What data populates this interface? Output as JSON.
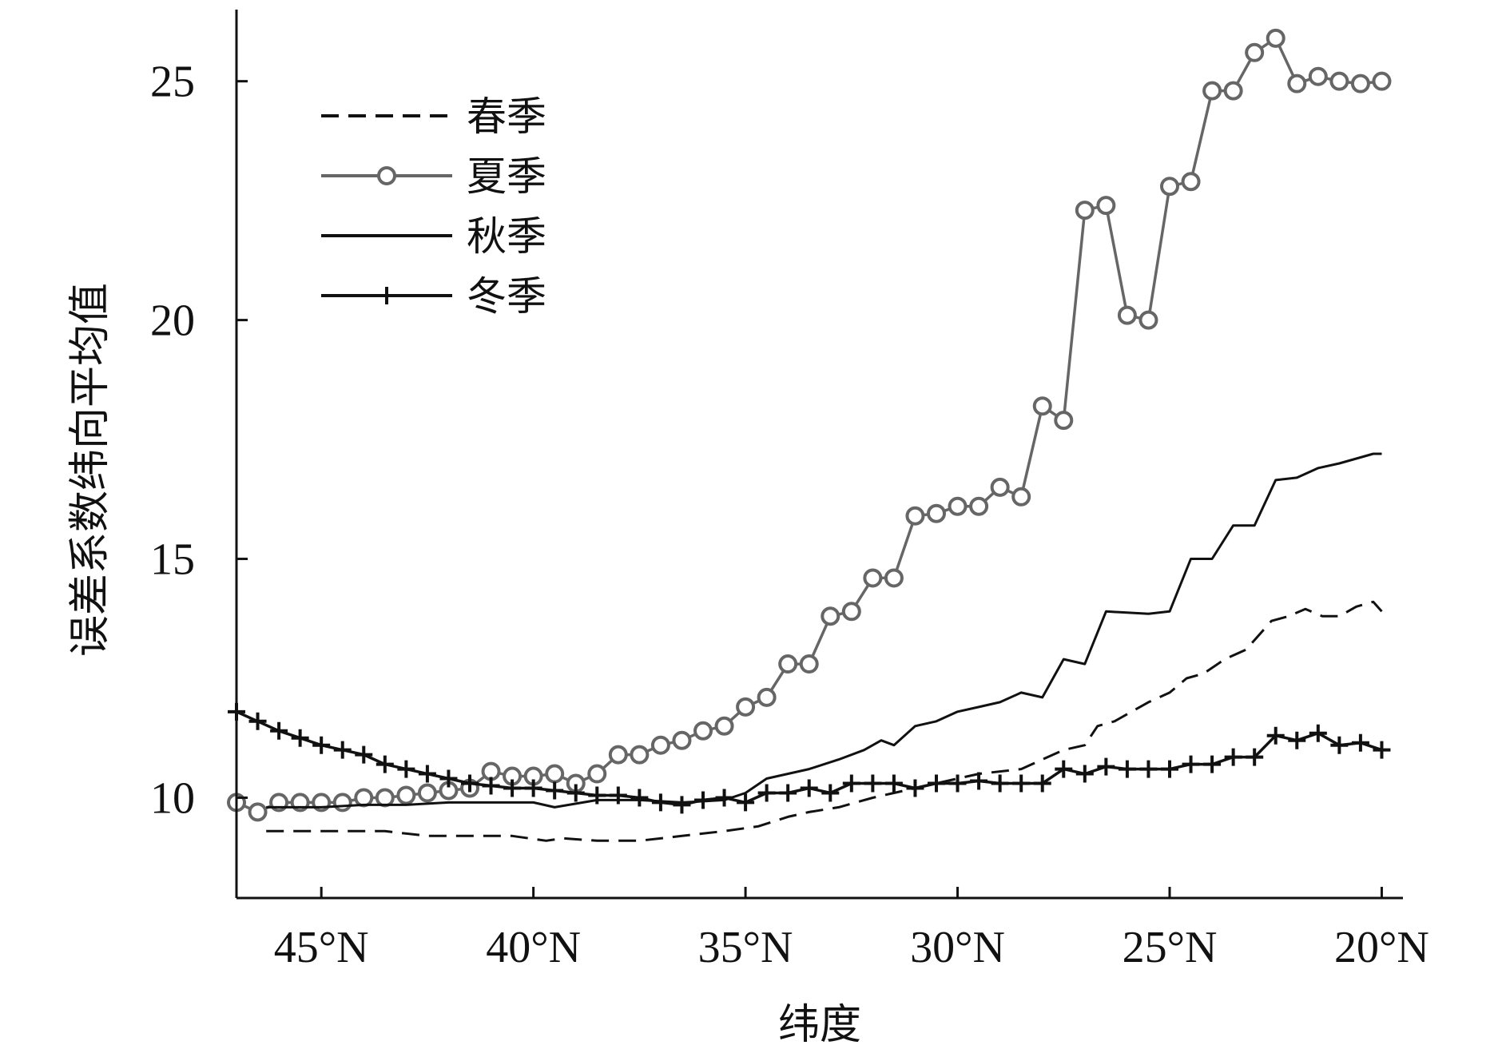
{
  "chart_data": {
    "type": "line",
    "title": "",
    "xlabel": "纬度",
    "ylabel": "误差系数纬向平均值",
    "x_reversed": true,
    "xlim": [
      47.0,
      19.5
    ],
    "ylim": [
      7.9,
      26.5
    ],
    "x_ticks": [
      {
        "value": 45,
        "label": "45°N"
      },
      {
        "value": 40,
        "label": "40°N"
      },
      {
        "value": 35,
        "label": "35°N"
      },
      {
        "value": 30,
        "label": "30°N"
      },
      {
        "value": 25,
        "label": "25°N"
      },
      {
        "value": 20,
        "label": "20°N"
      }
    ],
    "y_ticks": [
      {
        "value": 10,
        "label": "10"
      },
      {
        "value": 15,
        "label": "15"
      },
      {
        "value": 20,
        "label": "20"
      },
      {
        "value": 25,
        "label": "25"
      }
    ],
    "grid": false,
    "legend_position": "top-left",
    "series": [
      {
        "name": "春季",
        "color": "#111111",
        "style": "dashed",
        "marker": "none",
        "x": [
          46.3,
          45.5,
          44.5,
          43.5,
          42.5,
          41.5,
          40.5,
          39.7,
          39.3,
          38.5,
          37.5,
          36.5,
          35.5,
          34.7,
          34.0,
          33.5,
          32.8,
          32.0,
          31.5,
          31.0,
          30.5,
          30.0,
          29.5,
          28.5,
          28.0,
          27.5,
          27.0,
          26.7,
          26.3,
          25.5,
          25.0,
          24.6,
          24.2,
          23.7,
          23.2,
          22.8,
          22.6,
          22.2,
          21.8,
          21.4,
          21.0,
          20.6,
          20.2,
          20.0
        ],
        "y": [
          9.3,
          9.3,
          9.3,
          9.3,
          9.2,
          9.2,
          9.2,
          9.1,
          9.15,
          9.1,
          9.1,
          9.2,
          9.3,
          9.4,
          9.6,
          9.7,
          9.8,
          10.0,
          10.1,
          10.2,
          10.3,
          10.4,
          10.5,
          10.6,
          10.8,
          11.0,
          11.1,
          11.5,
          11.6,
          12.0,
          12.2,
          12.5,
          12.6,
          12.9,
          13.1,
          13.5,
          13.7,
          13.8,
          13.95,
          13.8,
          13.8,
          14.0,
          14.1,
          13.9
        ]
      },
      {
        "name": "夏季",
        "color": "#666666",
        "style": "solid",
        "marker": "circle",
        "x": [
          47.0,
          46.5,
          46.0,
          45.5,
          45.0,
          44.5,
          44.0,
          43.5,
          43.0,
          42.5,
          42.0,
          41.5,
          41.0,
          40.5,
          40.0,
          39.5,
          39.0,
          38.5,
          38.0,
          37.5,
          37.0,
          36.5,
          36.0,
          35.5,
          35.0,
          34.5,
          34.0,
          33.5,
          33.0,
          32.5,
          32.0,
          31.5,
          31.0,
          30.5,
          30.0,
          29.5,
          29.0,
          28.5,
          28.0,
          27.5,
          27.0,
          26.5,
          26.0,
          25.5,
          25.0,
          24.5,
          24.0,
          23.5,
          23.0,
          22.5,
          22.0,
          21.5,
          21.0,
          20.5,
          20.0
        ],
        "y": [
          9.9,
          9.7,
          9.9,
          9.9,
          9.9,
          9.9,
          10.0,
          10.0,
          10.05,
          10.1,
          10.15,
          10.2,
          10.55,
          10.45,
          10.45,
          10.5,
          10.3,
          10.5,
          10.9,
          10.9,
          11.1,
          11.2,
          11.4,
          11.5,
          11.9,
          12.1,
          12.8,
          12.8,
          13.8,
          13.9,
          14.6,
          14.6,
          15.9,
          15.95,
          16.1,
          16.1,
          16.5,
          16.3,
          18.2,
          17.9,
          22.3,
          22.4,
          20.1,
          20.0,
          22.8,
          22.9,
          24.8,
          24.8,
          25.6,
          25.9,
          24.95,
          25.1,
          25.0,
          24.95,
          25.0
        ]
      },
      {
        "name": "秋季",
        "color": "#111111",
        "style": "solid",
        "marker": "none",
        "x": [
          46.3,
          45.0,
          44.0,
          43.0,
          42.0,
          41.0,
          40.0,
          39.5,
          38.5,
          37.5,
          36.5,
          35.5,
          35.0,
          34.5,
          33.5,
          32.8,
          32.2,
          31.8,
          31.5,
          31.0,
          30.5,
          30.0,
          29.5,
          29.0,
          28.5,
          28.0,
          27.5,
          27.0,
          26.5,
          25.5,
          25.0,
          24.5,
          24.0,
          23.5,
          23.0,
          22.5,
          22.0,
          21.5,
          21.0,
          20.6,
          20.2,
          20.0
        ],
        "y": [
          9.8,
          9.8,
          9.85,
          9.85,
          9.9,
          9.9,
          9.9,
          9.8,
          9.95,
          9.95,
          9.9,
          9.95,
          10.1,
          10.4,
          10.6,
          10.8,
          11.0,
          11.2,
          11.1,
          11.5,
          11.6,
          11.8,
          11.9,
          12.0,
          12.2,
          12.1,
          12.9,
          12.8,
          13.9,
          13.85,
          13.9,
          15.0,
          15.0,
          15.7,
          15.7,
          16.65,
          16.7,
          16.9,
          17.0,
          17.1,
          17.2,
          17.2
        ]
      },
      {
        "name": "冬季",
        "color": "#111111",
        "style": "solid",
        "marker": "plus",
        "x": [
          47.0,
          46.5,
          46.0,
          45.5,
          45.0,
          44.5,
          44.0,
          43.5,
          43.0,
          42.5,
          42.0,
          41.5,
          41.0,
          40.5,
          40.0,
          39.5,
          39.0,
          38.5,
          38.0,
          37.5,
          37.0,
          36.5,
          36.0,
          35.5,
          35.0,
          34.5,
          34.0,
          33.5,
          33.0,
          32.5,
          32.0,
          31.5,
          31.0,
          30.5,
          30.0,
          29.5,
          29.0,
          28.5,
          28.0,
          27.5,
          27.0,
          26.5,
          26.0,
          25.5,
          25.0,
          24.5,
          24.0,
          23.5,
          23.0,
          22.5,
          22.0,
          21.5,
          21.0,
          20.5,
          20.0
        ],
        "y": [
          11.8,
          11.6,
          11.4,
          11.25,
          11.1,
          11.0,
          10.9,
          10.7,
          10.6,
          10.5,
          10.4,
          10.3,
          10.25,
          10.2,
          10.2,
          10.15,
          10.1,
          10.05,
          10.05,
          10.0,
          9.9,
          9.85,
          9.95,
          10.0,
          9.9,
          10.1,
          10.1,
          10.2,
          10.1,
          10.3,
          10.3,
          10.3,
          10.2,
          10.3,
          10.3,
          10.35,
          10.3,
          10.3,
          10.3,
          10.6,
          10.5,
          10.65,
          10.6,
          10.6,
          10.6,
          10.7,
          10.7,
          10.85,
          10.85,
          11.3,
          11.2,
          11.35,
          11.1,
          11.15,
          11.0
        ]
      }
    ]
  }
}
